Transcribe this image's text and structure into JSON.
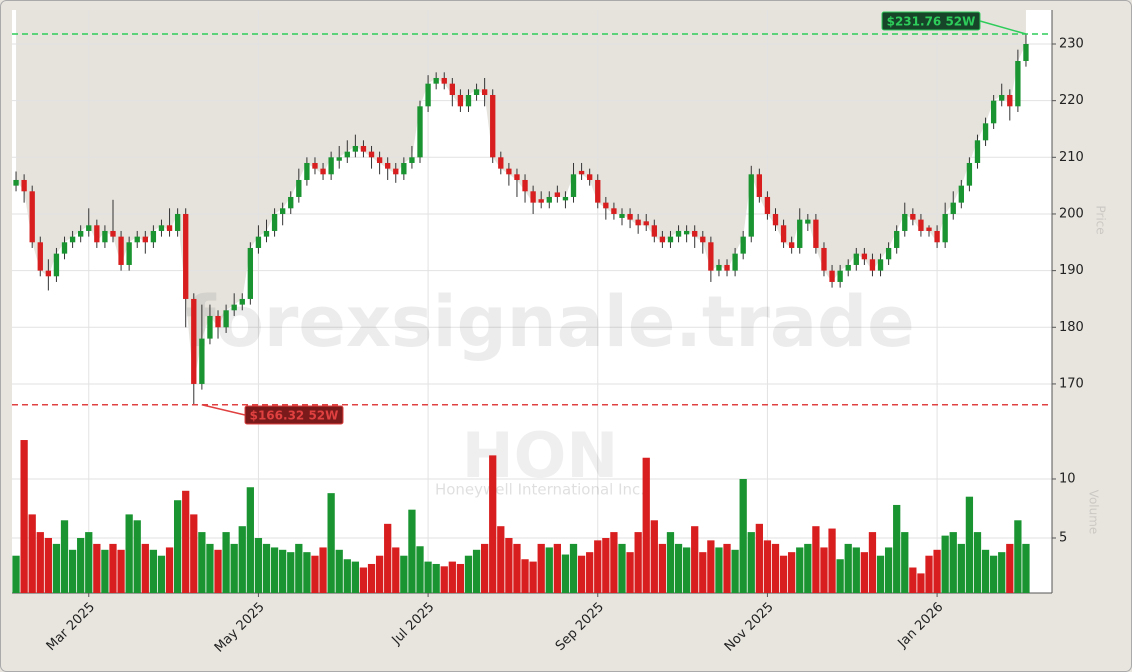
{
  "chart_data": {
    "type": "candlestick",
    "watermark": "forexsignale.trade",
    "symbol": "HON",
    "company": "Honeywell International Inc.",
    "y_label": "Price",
    "volume_label": "Volume",
    "categories": [
      null,
      null,
      null,
      null,
      null,
      null,
      null,
      null,
      null,
      "Mar 2025",
      null,
      null,
      null,
      null,
      null,
      null,
      null,
      null,
      null,
      null,
      null,
      null,
      null,
      null,
      null,
      null,
      null,
      null,
      null,
      null,
      "May 2025",
      null,
      null,
      null,
      null,
      null,
      null,
      null,
      null,
      null,
      null,
      null,
      null,
      null,
      null,
      null,
      null,
      null,
      null,
      null,
      null,
      "Jul 2025",
      null,
      null,
      null,
      null,
      null,
      null,
      null,
      null,
      null,
      null,
      null,
      null,
      null,
      null,
      null,
      null,
      null,
      null,
      null,
      null,
      "Sep 2025",
      null,
      null,
      null,
      null,
      null,
      null,
      null,
      null,
      null,
      null,
      null,
      null,
      null,
      null,
      null,
      null,
      null,
      null,
      null,
      null,
      "Nov 2025",
      null,
      null,
      null,
      null,
      null,
      null,
      null,
      null,
      null,
      null,
      null,
      null,
      null,
      null,
      null,
      null,
      null,
      null,
      null,
      null,
      "Jan 2026",
      null,
      null,
      null,
      null,
      null,
      null,
      null,
      null,
      null,
      null,
      null
    ],
    "open": [
      205,
      206,
      204,
      195,
      190,
      189,
      193,
      195,
      196,
      197,
      198,
      195,
      197,
      196,
      191,
      195,
      196,
      195,
      197,
      198,
      197,
      200,
      185,
      170,
      178,
      182,
      180,
      183,
      184,
      185,
      194,
      196,
      197,
      200,
      201,
      203,
      206,
      209,
      208,
      207,
      209.4,
      210,
      211,
      212,
      211,
      210,
      209,
      208,
      207,
      209,
      210,
      219,
      223,
      224,
      223,
      221,
      219,
      221,
      222,
      221,
      210,
      208,
      207,
      206,
      204,
      202.6,
      202,
      203.8,
      202.4,
      203,
      207.6,
      207,
      206,
      202,
      201,
      199.3,
      200,
      199,
      198.7,
      198,
      196,
      195,
      196,
      196.4,
      197,
      196,
      195,
      190,
      191,
      190,
      193,
      196,
      207,
      203,
      200,
      198,
      195,
      194,
      198.3,
      199,
      194,
      190,
      188,
      190,
      191,
      193,
      192,
      190,
      192,
      194,
      197,
      200,
      199,
      197.6,
      197,
      195,
      200,
      202,
      205,
      209,
      213,
      216,
      220,
      221,
      219,
      227
    ],
    "high": [
      207.5,
      207,
      205,
      196,
      192,
      194,
      196,
      197,
      198,
      201,
      199,
      198,
      202.5,
      197,
      196,
      197,
      197,
      198,
      199,
      201,
      201,
      201,
      186,
      184,
      184,
      183,
      184,
      186,
      186,
      195,
      198,
      199,
      201,
      202,
      204,
      208,
      210,
      210,
      209,
      211,
      212,
      213,
      214,
      213,
      212,
      211,
      210,
      209,
      210,
      212,
      220,
      224.5,
      225,
      225,
      224,
      222,
      222,
      223,
      224,
      222,
      211,
      209,
      208,
      207,
      205,
      204,
      204,
      205,
      204,
      209,
      209,
      208,
      207,
      203,
      202,
      201,
      201,
      200,
      200,
      199,
      197,
      197,
      198,
      198,
      198,
      197,
      196,
      192,
      192,
      194,
      197,
      208.5,
      208,
      204,
      201,
      199,
      196,
      201,
      200,
      200,
      195,
      191,
      191,
      192,
      194,
      194,
      193,
      193,
      195,
      198,
      202,
      201,
      200,
      198,
      198,
      202,
      204,
      206,
      210,
      214,
      217,
      221,
      223,
      222,
      229,
      231.76
    ],
    "low": [
      204,
      202,
      194,
      189,
      186.5,
      188,
      192,
      194,
      195,
      196,
      194,
      194,
      195,
      190,
      190,
      194,
      193,
      194,
      196,
      196,
      196,
      180,
      166.32,
      169,
      177,
      178,
      179,
      182,
      183,
      184,
      193,
      195,
      196,
      198,
      200,
      202,
      205,
      207,
      206,
      206,
      208,
      209,
      210,
      210,
      208,
      207,
      206,
      205.5,
      206,
      208,
      209,
      218,
      222,
      222,
      219,
      218,
      218,
      220,
      219,
      209,
      207,
      205,
      203,
      202,
      200,
      201,
      201,
      202,
      201,
      202,
      206,
      205,
      201,
      199,
      199,
      198,
      197.5,
      196.5,
      197,
      195,
      194,
      194,
      195,
      195,
      194,
      193,
      188,
      189,
      189,
      189,
      192,
      195,
      202,
      199,
      197,
      194,
      193,
      193,
      197,
      193,
      189,
      187,
      187,
      189,
      190,
      191,
      189,
      189,
      191,
      193,
      196,
      198,
      196,
      196,
      194,
      194,
      199,
      201,
      204,
      208,
      212,
      215,
      219,
      216.5,
      218,
      226
    ],
    "close": [
      206,
      204,
      195,
      190,
      189,
      193,
      195,
      196,
      197,
      198,
      195,
      197,
      196,
      191,
      195,
      196,
      195,
      197,
      198,
      197,
      200,
      185,
      170,
      178,
      182,
      180,
      183,
      184,
      185,
      194,
      196,
      197,
      200,
      201,
      203,
      206,
      209,
      208,
      207,
      210,
      210,
      211,
      212,
      211,
      210,
      209,
      208,
      207,
      209,
      210,
      219,
      223,
      224,
      223,
      221,
      219,
      221,
      222,
      221,
      210,
      208,
      207,
      206,
      204,
      202,
      202,
      203,
      203,
      203,
      207,
      207,
      206,
      202,
      201,
      200,
      200,
      199,
      198,
      198,
      196,
      195,
      196,
      197,
      197,
      196,
      195,
      190,
      191,
      190,
      193,
      196,
      207,
      203,
      200,
      198,
      195,
      194,
      199,
      199,
      194,
      190,
      188,
      190,
      191,
      193,
      192,
      190,
      192,
      194,
      197,
      200,
      199,
      197,
      197,
      195,
      200,
      202,
      205,
      209,
      213,
      216,
      220,
      221,
      219,
      227,
      230
    ],
    "volume": [
      3.5,
      13.3,
      7,
      5.5,
      5,
      4.5,
      6.5,
      4,
      5,
      5.5,
      4.5,
      4,
      4.5,
      4,
      7,
      6.5,
      4.5,
      4,
      3.5,
      4.2,
      8.2,
      9,
      7,
      5.5,
      4.5,
      4,
      5.5,
      4.5,
      6,
      9.3,
      5,
      4.5,
      4.2,
      4,
      3.8,
      4.5,
      3.8,
      3.5,
      4.2,
      8.8,
      4,
      3.2,
      3,
      2.5,
      2.8,
      3.5,
      6.2,
      4.2,
      3.5,
      7.4,
      4.3,
      3,
      2.8,
      2.6,
      3,
      2.8,
      3.5,
      4,
      4.5,
      12,
      6,
      5,
      4.5,
      3.2,
      3,
      4.5,
      4.2,
      4.5,
      3.6,
      4.5,
      3.5,
      3.8,
      4.8,
      5,
      5.5,
      4.5,
      3.8,
      5.5,
      11.8,
      6.5,
      4.5,
      5.5,
      4.5,
      4.2,
      6,
      3.8,
      4.8,
      4.2,
      4.5,
      4,
      10,
      5.5,
      6.2,
      4.8,
      4.5,
      3.5,
      3.8,
      4.2,
      4.5,
      6,
      4.2,
      5.8,
      3.2,
      4.5,
      4.2,
      3.8,
      5.5,
      3.5,
      4.2,
      7.8,
      5.5,
      2.5,
      2,
      3.5,
      4,
      5.2,
      5.5,
      4.5,
      8.5,
      5.5,
      4,
      3.5,
      3.8,
      4.5,
      6.5,
      4.5
    ],
    "up_color": "#1a9431",
    "down_color": "#d81e1e",
    "shade_color": "#e6e3dd",
    "ylim": [
      162.4,
      236
    ],
    "yticks": [
      170,
      180,
      190,
      200,
      210,
      220,
      230
    ],
    "volume_ylim": [
      0.34,
      14.15
    ],
    "volume_yticks": [
      5,
      10
    ],
    "grid": true,
    "high_52w": {
      "value": 231.76,
      "label": "$231.76 52W",
      "color": "#2ecc5a"
    },
    "low_52w": {
      "value": 166.32,
      "label": "$166.32 52W",
      "color": "#e04040"
    }
  }
}
